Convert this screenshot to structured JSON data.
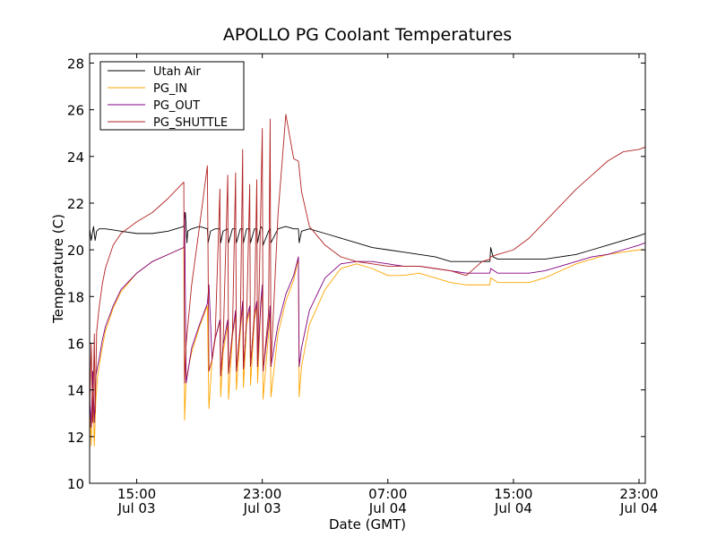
{
  "chart_data": {
    "type": "line",
    "title": "APOLLO PG Coolant Temperatures",
    "xlabel": "Date (GMT)",
    "ylabel": "Temperature (C)",
    "x_units": "hours since Jul 03 00:00 GMT",
    "xlim": [
      12.0,
      47.4
    ],
    "ylim": [
      10,
      28.4
    ],
    "yticks": [
      10,
      12,
      14,
      16,
      18,
      20,
      22,
      24,
      26,
      28
    ],
    "xticks": [
      {
        "hour": 15,
        "time": "15:00",
        "date": "Jul 03"
      },
      {
        "hour": 23,
        "time": "23:00",
        "date": "Jul 03"
      },
      {
        "hour": 31,
        "time": "07:00",
        "date": "Jul 04"
      },
      {
        "hour": 39,
        "time": "15:00",
        "date": "Jul 04"
      },
      {
        "hour": 47,
        "time": "23:00",
        "date": "Jul 04"
      }
    ],
    "legend_position": "top-left",
    "series": [
      {
        "name": "Utah Air",
        "color": "#000000",
        "x": [
          12.0,
          12.1,
          12.2,
          12.25,
          12.35,
          12.45,
          12.6,
          13.0,
          14.0,
          15.0,
          16.0,
          17.0,
          18.0,
          18.1,
          18.2,
          18.25,
          18.5,
          19.0,
          19.5,
          19.55,
          19.7,
          20.0,
          20.3,
          20.35,
          20.5,
          20.8,
          20.85,
          21.1,
          21.3,
          21.35,
          21.6,
          21.75,
          21.8,
          22.0,
          22.2,
          22.25,
          22.5,
          22.65,
          22.7,
          22.9,
          23.0,
          23.05,
          23.4,
          23.5,
          23.55,
          24.0,
          24.5,
          25.0,
          25.3,
          25.35,
          25.5,
          26.0,
          27.0,
          28.0,
          29.0,
          30.0,
          31.0,
          32.0,
          33.0,
          34.0,
          35.0,
          36.0,
          37.0,
          37.5,
          37.55,
          37.7,
          38.0,
          39.0,
          40.0,
          41.0,
          42.0,
          43.0,
          44.0,
          45.0,
          46.0,
          47.0,
          47.4
        ],
        "y": [
          20.9,
          20.4,
          20.8,
          21.0,
          20.4,
          20.8,
          20.9,
          20.9,
          20.8,
          20.7,
          20.7,
          20.8,
          21.0,
          21.6,
          20.3,
          20.8,
          20.9,
          21.0,
          20.9,
          20.3,
          20.8,
          20.9,
          20.9,
          20.3,
          20.8,
          20.9,
          20.3,
          20.9,
          20.9,
          20.3,
          20.9,
          20.9,
          20.3,
          20.9,
          20.9,
          20.3,
          20.9,
          20.9,
          20.3,
          21.0,
          20.9,
          20.2,
          20.8,
          20.9,
          20.3,
          20.9,
          21.0,
          20.9,
          20.9,
          20.3,
          20.8,
          20.9,
          20.7,
          20.5,
          20.3,
          20.1,
          20.0,
          19.9,
          19.8,
          19.7,
          19.5,
          19.5,
          19.5,
          19.5,
          20.1,
          19.7,
          19.6,
          19.6,
          19.6,
          19.6,
          19.7,
          19.8,
          20.0,
          20.2,
          20.4,
          20.6,
          20.7
        ]
      },
      {
        "name": "PG_IN",
        "color": "#ffa500",
        "x": [
          12.0,
          12.1,
          12.2,
          12.3,
          12.4,
          12.5,
          12.6,
          12.8,
          13.0,
          13.5,
          14.0,
          15.0,
          16.0,
          17.0,
          18.0,
          18.05,
          18.15,
          18.5,
          19.0,
          19.5,
          19.6,
          19.8,
          20.0,
          20.3,
          20.35,
          20.5,
          20.8,
          20.85,
          21.1,
          21.3,
          21.35,
          21.6,
          21.75,
          21.8,
          22.0,
          22.2,
          22.25,
          22.5,
          22.65,
          22.7,
          22.9,
          23.0,
          23.05,
          23.4,
          23.5,
          23.55,
          24.0,
          24.5,
          25.0,
          25.3,
          25.35,
          25.5,
          26.0,
          27.0,
          28.0,
          29.0,
          30.0,
          31.0,
          32.0,
          33.0,
          34.0,
          35.0,
          36.0,
          37.0,
          37.5,
          37.55,
          38.0,
          39.0,
          40.0,
          41.0,
          42.0,
          43.0,
          44.0,
          45.0,
          46.0,
          47.0,
          47.4
        ],
        "y": [
          13.5,
          11.6,
          14.4,
          11.6,
          13.6,
          14.5,
          15.0,
          15.8,
          16.5,
          17.5,
          18.2,
          19.0,
          19.5,
          19.8,
          20.1,
          12.7,
          14.5,
          15.6,
          16.7,
          17.6,
          13.2,
          15.3,
          16.2,
          16.9,
          13.7,
          15.6,
          16.8,
          13.6,
          16.3,
          17.2,
          14.0,
          16.5,
          17.6,
          14.1,
          16.8,
          17.4,
          14.2,
          17.0,
          17.6,
          14.3,
          17.5,
          18.3,
          13.6,
          16.4,
          17.3,
          13.7,
          16.4,
          17.8,
          18.7,
          19.6,
          13.7,
          15.0,
          16.8,
          18.3,
          19.2,
          19.4,
          19.2,
          18.9,
          18.9,
          19.0,
          18.8,
          18.6,
          18.5,
          18.5,
          18.5,
          18.8,
          18.6,
          18.6,
          18.6,
          18.8,
          19.1,
          19.4,
          19.6,
          19.8,
          19.9,
          20.0,
          20.0
        ]
      },
      {
        "name": "PG_OUT",
        "color": "#800080",
        "x": [
          12.0,
          12.1,
          12.2,
          12.3,
          12.4,
          12.5,
          12.6,
          12.8,
          13.0,
          13.5,
          14.0,
          15.0,
          16.0,
          17.0,
          18.0,
          18.05,
          18.15,
          18.5,
          19.0,
          19.5,
          19.6,
          19.8,
          20.0,
          20.3,
          20.35,
          20.5,
          20.8,
          20.85,
          21.1,
          21.3,
          21.35,
          21.6,
          21.75,
          21.8,
          22.0,
          22.2,
          22.25,
          22.5,
          22.65,
          22.7,
          22.9,
          23.0,
          23.05,
          23.4,
          23.5,
          23.55,
          24.0,
          24.5,
          25.0,
          25.3,
          25.35,
          25.5,
          26.0,
          27.0,
          28.0,
          29.0,
          30.0,
          31.0,
          32.0,
          33.0,
          34.0,
          35.0,
          36.0,
          37.0,
          37.5,
          37.55,
          38.0,
          39.0,
          40.0,
          41.0,
          42.0,
          43.0,
          44.0,
          45.0,
          46.0,
          47.0,
          47.4
        ],
        "y": [
          13.8,
          12.4,
          14.8,
          12.6,
          14.6,
          15.0,
          15.3,
          16.1,
          16.7,
          17.6,
          18.3,
          19.0,
          19.5,
          19.8,
          20.1,
          21.6,
          14.3,
          15.8,
          16.8,
          17.7,
          18.5,
          15.3,
          16.2,
          17.0,
          14.6,
          15.9,
          17.0,
          14.7,
          16.4,
          17.4,
          14.8,
          16.7,
          17.8,
          14.9,
          17.0,
          17.6,
          15.0,
          17.2,
          17.8,
          15.0,
          17.7,
          18.5,
          14.8,
          16.8,
          17.6,
          15.0,
          16.8,
          18.1,
          18.9,
          19.7,
          15.0,
          15.8,
          17.4,
          18.8,
          19.4,
          19.5,
          19.5,
          19.4,
          19.3,
          19.3,
          19.2,
          19.1,
          19.0,
          19.0,
          19.0,
          19.2,
          19.0,
          19.0,
          19.0,
          19.1,
          19.3,
          19.5,
          19.7,
          19.8,
          20.0,
          20.2,
          20.3
        ]
      },
      {
        "name": "PG_SHUTTLE",
        "color": "#b22222",
        "x": [
          12.0,
          12.1,
          12.2,
          12.3,
          12.35,
          12.45,
          12.6,
          12.8,
          13.0,
          13.5,
          14.0,
          15.0,
          16.0,
          17.0,
          18.0,
          18.05,
          18.15,
          18.5,
          19.0,
          19.5,
          19.6,
          19.8,
          20.0,
          20.3,
          20.35,
          20.5,
          20.8,
          20.85,
          21.1,
          21.3,
          21.35,
          21.6,
          21.75,
          21.8,
          22.0,
          22.2,
          22.25,
          22.5,
          22.65,
          22.7,
          22.9,
          23.0,
          23.05,
          23.4,
          23.5,
          23.55,
          24.0,
          24.5,
          25.0,
          25.3,
          25.35,
          25.5,
          26.0,
          27.0,
          28.0,
          29.0,
          30.0,
          31.0,
          32.0,
          33.0,
          34.0,
          35.0,
          36.0,
          37.0,
          37.5,
          37.55,
          38.0,
          39.0,
          40.0,
          41.0,
          42.0,
          43.0,
          44.0,
          45.0,
          46.0,
          47.0,
          47.4
        ],
        "y": [
          13.0,
          16.0,
          12.6,
          16.4,
          13.0,
          16.5,
          17.5,
          18.5,
          19.2,
          20.2,
          20.7,
          21.2,
          21.6,
          22.2,
          22.9,
          14.3,
          16.0,
          18.5,
          21.0,
          23.6,
          14.8,
          15.3,
          16.3,
          22.6,
          14.6,
          15.9,
          23.2,
          14.7,
          16.5,
          23.3,
          14.8,
          16.8,
          24.3,
          14.9,
          17.0,
          22.8,
          15.0,
          17.3,
          23.0,
          15.0,
          21.7,
          25.2,
          14.8,
          17.3,
          25.6,
          15.0,
          21.5,
          25.8,
          23.9,
          23.8,
          23.5,
          22.5,
          21.0,
          20.2,
          19.7,
          19.5,
          19.4,
          19.3,
          19.3,
          19.3,
          19.2,
          19.1,
          18.9,
          19.5,
          19.6,
          19.7,
          19.8,
          20.0,
          20.5,
          21.2,
          21.9,
          22.6,
          23.2,
          23.8,
          24.2,
          24.3,
          24.4
        ]
      }
    ]
  }
}
